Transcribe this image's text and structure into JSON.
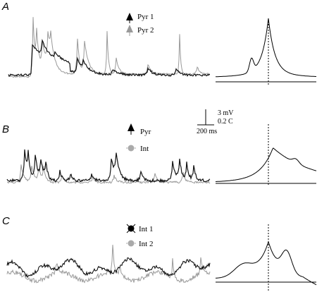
{
  "panels": [
    {
      "id": "A",
      "letter": "A",
      "legend": [
        {
          "label": "Pyr 1",
          "marker": "triangle-up-icon",
          "color": "#000000"
        },
        {
          "label": "Pyr 2",
          "marker": "triangle-up-icon",
          "color": "#999999"
        }
      ]
    },
    {
      "id": "B",
      "letter": "B",
      "legend": [
        {
          "label": "Pyr",
          "marker": "triangle-up-icon",
          "color": "#000000"
        },
        {
          "label": "Int",
          "marker": "circle-icon",
          "color": "#aaaaaa"
        }
      ]
    },
    {
      "id": "C",
      "letter": "C",
      "legend": [
        {
          "label": "Int 1",
          "marker": "crossed-circle-icon",
          "color": "#000000"
        },
        {
          "label": "Int 2",
          "marker": "circle-icon",
          "color": "#aaaaaa"
        }
      ]
    }
  ],
  "scale_bar": {
    "voltage": "3 mV",
    "correlation": "0.2 C",
    "time": "200 ms"
  },
  "colors": {
    "trace_dark": "#111111",
    "trace_light": "#999999",
    "axis": "#000000"
  }
}
